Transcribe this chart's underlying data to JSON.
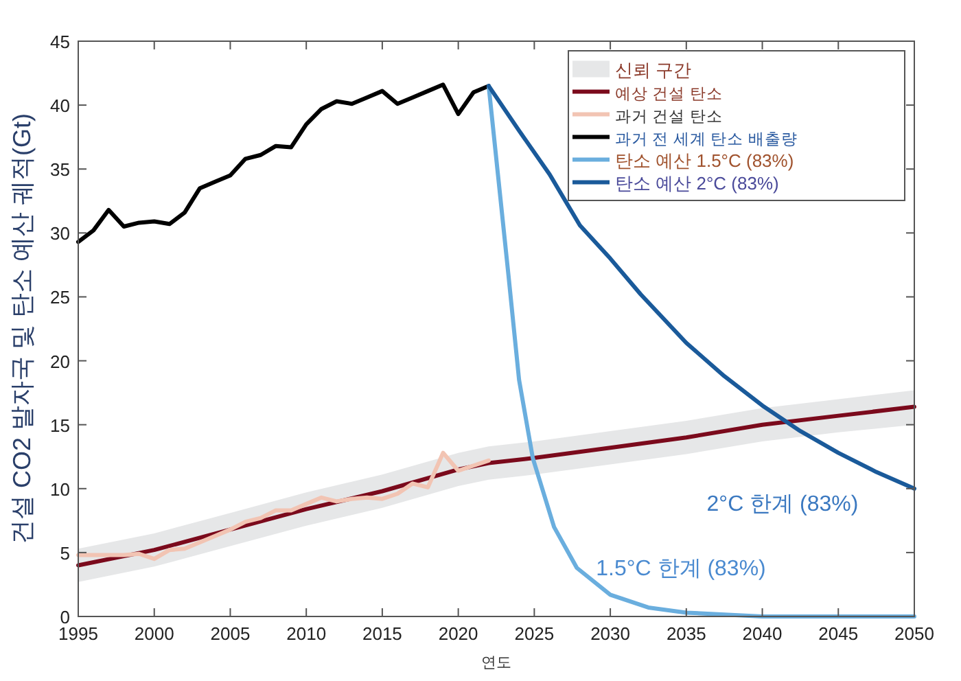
{
  "chart_data": {
    "type": "line",
    "xlabel": "연도",
    "ylabel": "건설 CO2 발자국 및 탄소 예산 궤적(Gt)",
    "xlim": [
      1995,
      2050
    ],
    "ylim": [
      0,
      45
    ],
    "xticks": [
      1995,
      2000,
      2005,
      2010,
      2015,
      2020,
      2025,
      2030,
      2035,
      2040,
      2045,
      2050
    ],
    "yticks": [
      0,
      5,
      10,
      15,
      20,
      25,
      30,
      35,
      40,
      45
    ],
    "grid": false,
    "legend": "top right",
    "marker": "none",
    "line_style": "solid",
    "series": [
      {
        "name": "예상 건설 탄소",
        "color": "#7b0a1c",
        "x": [
          1995,
          2000,
          2005,
          2010,
          2015,
          2020,
          2022,
          2025,
          2030,
          2035,
          2040,
          2045,
          2050
        ],
        "values": [
          4,
          5.2,
          6.8,
          8.4,
          9.8,
          11.5,
          12,
          12.4,
          13.2,
          14,
          15,
          15.7,
          16.4
        ],
        "lower": [
          2.7,
          3.9,
          5.5,
          7.1,
          8.5,
          10.2,
          10.7,
          11.1,
          11.9,
          12.7,
          13.7,
          14.4,
          15
        ],
        "upper": [
          5.3,
          6.5,
          8.1,
          9.7,
          11.1,
          12.8,
          13.3,
          13.7,
          14.5,
          15.3,
          16.3,
          17,
          17.7
        ]
      },
      {
        "name": "과거 건설 탄소",
        "color": "#f2c4b3",
        "x": [
          1995,
          1996,
          1997,
          1998,
          1999,
          2000,
          2001,
          2002,
          2003,
          2004,
          2005,
          2006,
          2007,
          2008,
          2009,
          2010,
          2011,
          2012,
          2013,
          2014,
          2015,
          2016,
          2017,
          2018,
          2019,
          2020,
          2021,
          2022
        ],
        "values": [
          4.8,
          4.8,
          4.8,
          4.8,
          4.9,
          4.5,
          5.2,
          5.3,
          5.8,
          6.3,
          6.8,
          7.4,
          7.7,
          8.3,
          8.3,
          8.8,
          9.3,
          9.0,
          9.2,
          9.3,
          9.2,
          9.6,
          10.4,
          10.1,
          12.8,
          11.4,
          11.8,
          12.2
        ]
      },
      {
        "name": "과거 전 세계 탄소 배출량",
        "color": "#000000",
        "x": [
          1995,
          1996,
          1997,
          1998,
          1999,
          2000,
          2001,
          2002,
          2003,
          2004,
          2005,
          2006,
          2007,
          2008,
          2009,
          2010,
          2011,
          2012,
          2013,
          2014,
          2015,
          2016,
          2017,
          2018,
          2019,
          2020,
          2021,
          2022
        ],
        "values": [
          29.3,
          30.2,
          31.8,
          30.5,
          30.8,
          30.9,
          30.7,
          31.6,
          33.5,
          34.0,
          34.5,
          35.8,
          36.1,
          36.8,
          36.7,
          38.5,
          39.7,
          40.3,
          40.1,
          40.6,
          41.1,
          40.1,
          40.6,
          41.1,
          41.6,
          39.3,
          41.0,
          41.5
        ]
      },
      {
        "name": "탄소 예산 1.5°C (83%)",
        "color": "#6aaede",
        "x": [
          2022,
          2023.3,
          2024,
          2024.9,
          2026.3,
          2027.8,
          2030,
          2032.5,
          2035,
          2040,
          2045,
          2050
        ],
        "values": [
          41.5,
          26.7,
          18.5,
          12.4,
          7,
          3.8,
          1.7,
          0.7,
          0.3,
          0,
          0,
          0
        ]
      },
      {
        "name": "탄소 예산 2°C (83%)",
        "color": "#1a5a9a",
        "x": [
          2022,
          2024,
          2026,
          2028,
          2030,
          2032,
          2035,
          2037.5,
          2040,
          2042.5,
          2045,
          2047.5,
          2050
        ],
        "values": [
          41.5,
          38.0,
          34.6,
          30.6,
          28,
          25.2,
          21.4,
          18.8,
          16.5,
          14.5,
          12.8,
          11.3,
          10
        ]
      }
    ],
    "annotations": [
      "신뢰 구간",
      "2°C 한계 (83%)",
      "1.5°C 한계 (83%)"
    ]
  }
}
